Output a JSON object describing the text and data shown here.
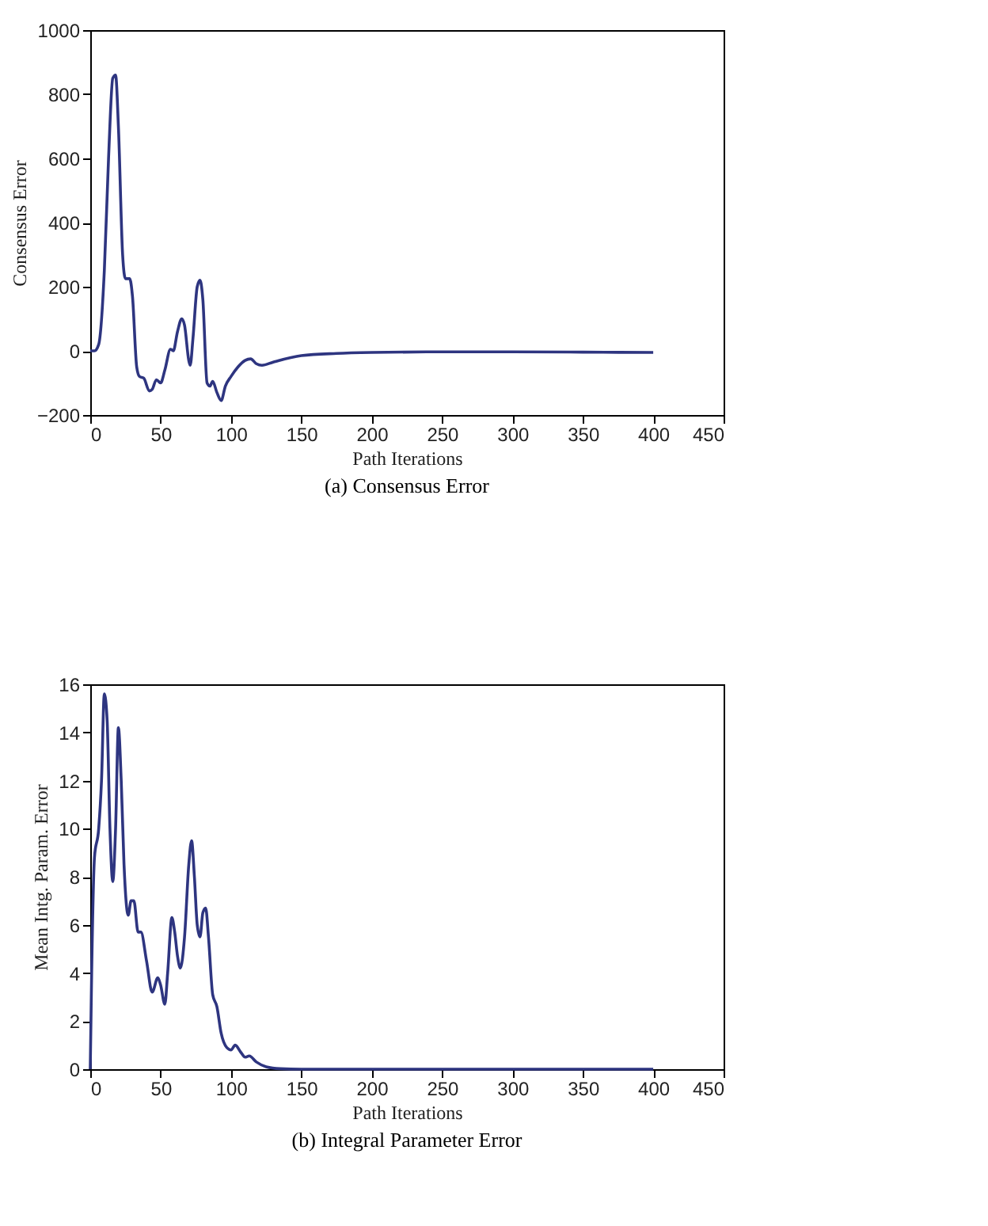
{
  "chart_data": [
    {
      "type": "line",
      "xlabel": "Path Iterations",
      "ylabel": "Consensus Error",
      "annotations": [
        "(a) Consensus Error"
      ],
      "xlim": [
        0,
        450
      ],
      "xticks": [
        0,
        50,
        100,
        150,
        200,
        250,
        300,
        350,
        400,
        450
      ],
      "ylim": [
        -200,
        1000
      ],
      "yticks": [
        -200,
        0,
        200,
        400,
        600,
        800,
        1000
      ],
      "grid": false,
      "series": [
        {
          "color": "#2e3580",
          "x": [
            0,
            3,
            6,
            10,
            13,
            16,
            18,
            20,
            23,
            25,
            28,
            30,
            33,
            35,
            38,
            42,
            44,
            47,
            50,
            53,
            57,
            59,
            62,
            65,
            67,
            70,
            71,
            73,
            76,
            78,
            80,
            83,
            85,
            87,
            90,
            93,
            96,
            100,
            105,
            110,
            114,
            118,
            122,
            130,
            150,
            175,
            200,
            250,
            300,
            350,
            400
          ],
          "values": [
            0,
            0,
            20,
            250,
            600,
            850,
            860,
            700,
            300,
            225,
            225,
            170,
            -50,
            -80,
            -85,
            -125,
            -120,
            -90,
            -100,
            -60,
            5,
            0,
            60,
            100,
            80,
            -30,
            -45,
            40,
            200,
            220,
            160,
            -100,
            -110,
            -95,
            -130,
            -155,
            -110,
            -80,
            -50,
            -30,
            -25,
            -40,
            -45,
            -35,
            -15,
            -8,
            -5,
            -3,
            -3,
            -4,
            -5
          ]
        }
      ]
    },
    {
      "type": "line",
      "xlabel": "Path Iterations",
      "ylabel": "Mean Intg. Param. Error",
      "annotations": [
        "(b) Integral Parameter Error"
      ],
      "xlim": [
        0,
        450
      ],
      "xticks": [
        0,
        50,
        100,
        150,
        200,
        250,
        300,
        350,
        400,
        450
      ],
      "ylim": [
        0,
        16
      ],
      "yticks": [
        0,
        2,
        4,
        6,
        8,
        10,
        12,
        14,
        16
      ],
      "grid": false,
      "series": [
        {
          "color": "#2e3580",
          "x": [
            0,
            1,
            3,
            6,
            8,
            10,
            12,
            14,
            16,
            18,
            20,
            22,
            24,
            27,
            29,
            31,
            34,
            36,
            40,
            44,
            48,
            50,
            53,
            55,
            58,
            60,
            62,
            64,
            67,
            70,
            72,
            74,
            76,
            78,
            80,
            82,
            84,
            87,
            90,
            93,
            97,
            100,
            103,
            107,
            110,
            113,
            118,
            125,
            135,
            150,
            400
          ],
          "values": [
            0,
            4,
            8.8,
            10,
            12,
            15.6,
            14.5,
            10,
            7.8,
            10,
            14.2,
            12,
            8.5,
            6.4,
            7,
            7,
            5.7,
            5.7,
            4.5,
            3.2,
            3.8,
            3.5,
            2.7,
            4,
            6.3,
            5.7,
            4.7,
            4.2,
            5.5,
            8.5,
            9.5,
            8,
            6,
            5.5,
            6.5,
            6.7,
            5.5,
            3.1,
            2.6,
            1.5,
            0.9,
            0.8,
            1,
            0.7,
            0.5,
            0.55,
            0.3,
            0.1,
            0.02,
            0,
            0
          ]
        }
      ]
    }
  ]
}
